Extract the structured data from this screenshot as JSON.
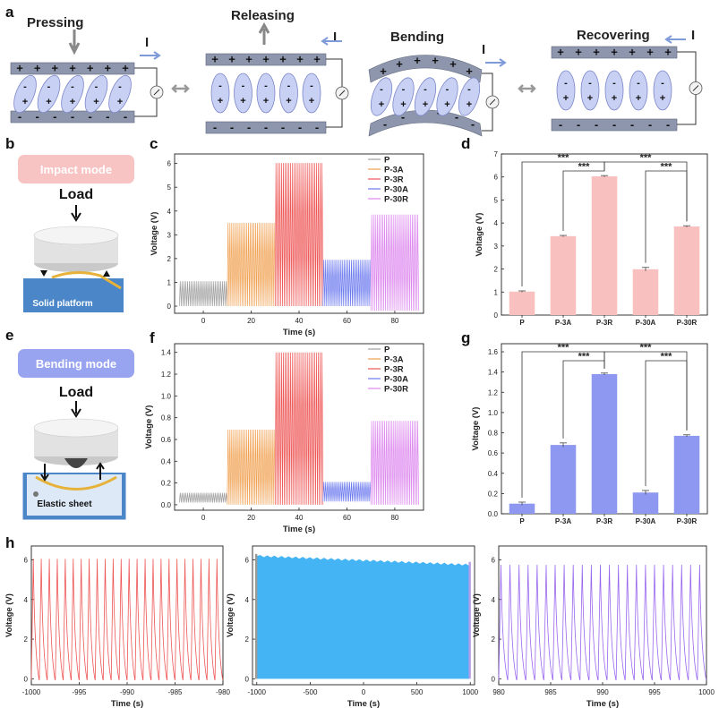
{
  "panels": {
    "a": "a",
    "b": "b",
    "c": "c",
    "d": "d",
    "e": "e",
    "f": "f",
    "g": "g",
    "h": "h"
  },
  "schematic": {
    "stages": [
      "Pressing",
      "Releasing",
      "Bending",
      "Recovering"
    ],
    "current_label": "I",
    "plus": "+",
    "minus": "-"
  },
  "modes": {
    "impact": "Impact mode",
    "bending": "Bending mode",
    "load": "Load",
    "solid_platform": "Solid platform",
    "elastic_sheet": "Elastic sheet"
  },
  "colors": {
    "P": "#a0a0a0",
    "P-3A": "#f0a050",
    "P-3R": "#ee5555",
    "P-30A": "#6a78ee",
    "P-30R": "#dd88ee",
    "bar_impact": "#f9c0c0",
    "bar_bending": "#8f98f0",
    "cycle_blue": "#44b4f4"
  },
  "chart_data": [
    {
      "id": "c",
      "type": "line",
      "xlabel": "Time (s)",
      "ylabel": "Voltage (V)",
      "xlim": [
        -12,
        92
      ],
      "ylim": [
        -0.3,
        6.4
      ],
      "xticks": [
        0,
        20,
        40,
        60,
        80
      ],
      "yticks": [
        0,
        1,
        2,
        3,
        4,
        5,
        6
      ],
      "legend_position": "top-right",
      "series": [
        {
          "name": "P",
          "x_range": [
            -10,
            10
          ],
          "peak": 1.05,
          "trough": 0.0
        },
        {
          "name": "P-3A",
          "x_range": [
            10,
            30
          ],
          "peak": 3.5,
          "trough": 0.0
        },
        {
          "name": "P-3R",
          "x_range": [
            30,
            50
          ],
          "peak": 6.02,
          "trough": 0.0
        },
        {
          "name": "P-30A",
          "x_range": [
            50,
            70
          ],
          "peak": 1.95,
          "trough": 0.0
        },
        {
          "name": "P-30R",
          "x_range": [
            70,
            90
          ],
          "peak": 3.85,
          "trough": -0.2
        }
      ]
    },
    {
      "id": "d",
      "type": "bar",
      "ylabel": "Voltage (V)",
      "ylim": [
        0,
        7
      ],
      "yticks": [
        0,
        1,
        2,
        3,
        4,
        5,
        6,
        7
      ],
      "categories": [
        "P",
        "P-3A",
        "P-3R",
        "P-30A",
        "P-30R"
      ],
      "values": [
        1.02,
        3.43,
        6.03,
        1.99,
        3.85
      ],
      "errors": [
        0.03,
        0.03,
        0.03,
        0.08,
        0.03
      ],
      "significance": [
        {
          "from": "P",
          "to": "P-3R",
          "label": "***"
        },
        {
          "from": "P-3A",
          "to": "P-3R",
          "label": "***"
        },
        {
          "from": "P-3R",
          "to": "P-30R",
          "label": "***"
        },
        {
          "from": "P-30A",
          "to": "P-30R",
          "label": "***"
        }
      ]
    },
    {
      "id": "f",
      "type": "line",
      "xlabel": "Time (s)",
      "ylabel": "Voltage (V)",
      "xlim": [
        -12,
        92
      ],
      "ylim": [
        -0.05,
        1.48
      ],
      "xticks": [
        0,
        20,
        40,
        60,
        80
      ],
      "yticks": [
        0.0,
        0.2,
        0.4,
        0.6,
        0.8,
        1.0,
        1.2,
        1.4
      ],
      "legend_position": "top-right",
      "series": [
        {
          "name": "P",
          "x_range": [
            -10,
            10
          ],
          "peak": 0.11,
          "trough": 0.02
        },
        {
          "name": "P-3A",
          "x_range": [
            10,
            30
          ],
          "peak": 0.69,
          "trough": 0.0
        },
        {
          "name": "P-3R",
          "x_range": [
            30,
            50
          ],
          "peak": 1.4,
          "trough": 0.0
        },
        {
          "name": "P-30A",
          "x_range": [
            50,
            70
          ],
          "peak": 0.21,
          "trough": 0.03
        },
        {
          "name": "P-30R",
          "x_range": [
            70,
            90
          ],
          "peak": 0.77,
          "trough": 0.0
        }
      ]
    },
    {
      "id": "g",
      "type": "bar",
      "ylabel": "Voltage (V)",
      "ylim": [
        0,
        1.68
      ],
      "yticks": [
        0.0,
        0.2,
        0.4,
        0.6,
        0.8,
        1.0,
        1.2,
        1.4,
        1.6
      ],
      "categories": [
        "P",
        "P-3A",
        "P-3R",
        "P-30A",
        "P-30R"
      ],
      "values": [
        0.1,
        0.68,
        1.38,
        0.21,
        0.77
      ],
      "errors": [
        0.015,
        0.02,
        0.01,
        0.02,
        0.01
      ],
      "significance": [
        {
          "from": "P",
          "to": "P-3R",
          "label": "***"
        },
        {
          "from": "P-3A",
          "to": "P-3R",
          "label": "***"
        },
        {
          "from": "P-3R",
          "to": "P-30R",
          "label": "***"
        },
        {
          "from": "P-30A",
          "to": "P-30R",
          "label": "***"
        }
      ]
    },
    {
      "id": "h1",
      "type": "line",
      "xlabel": "Time (s)",
      "ylabel": "Voltage (V)",
      "xlim": [
        -1000,
        -980
      ],
      "ylim": [
        -0.3,
        6.7
      ],
      "xticks": [
        -1000,
        -995,
        -990,
        -985,
        -980
      ],
      "yticks": [
        0,
        2,
        4,
        6
      ],
      "series": [
        {
          "name": "",
          "peak": 6.05,
          "trough": -0.05,
          "cycles": 24
        }
      ]
    },
    {
      "id": "h2",
      "type": "area",
      "xlabel": "Time (s)",
      "ylabel": "Voltage (V)",
      "xlim": [
        -1040,
        1040
      ],
      "ylim": [
        -0.3,
        6.7
      ],
      "xticks": [
        -1000,
        -500,
        0,
        500,
        1000
      ],
      "yticks": [
        0,
        2,
        4,
        6
      ],
      "series": [
        {
          "name": "",
          "peak_start": 6.2,
          "peak_end": 5.75,
          "trough": 0.0
        }
      ]
    },
    {
      "id": "h3",
      "type": "line",
      "xlabel": "Time (s)",
      "ylabel": "Voltage (V)",
      "xlim": [
        980,
        1000
      ],
      "ylim": [
        -0.3,
        6.7
      ],
      "xticks": [
        980,
        985,
        990,
        995,
        1000
      ],
      "yticks": [
        0,
        2,
        4,
        6
      ],
      "series": [
        {
          "name": "",
          "peak": 5.75,
          "trough": -0.05,
          "cycles": 23
        }
      ]
    }
  ]
}
